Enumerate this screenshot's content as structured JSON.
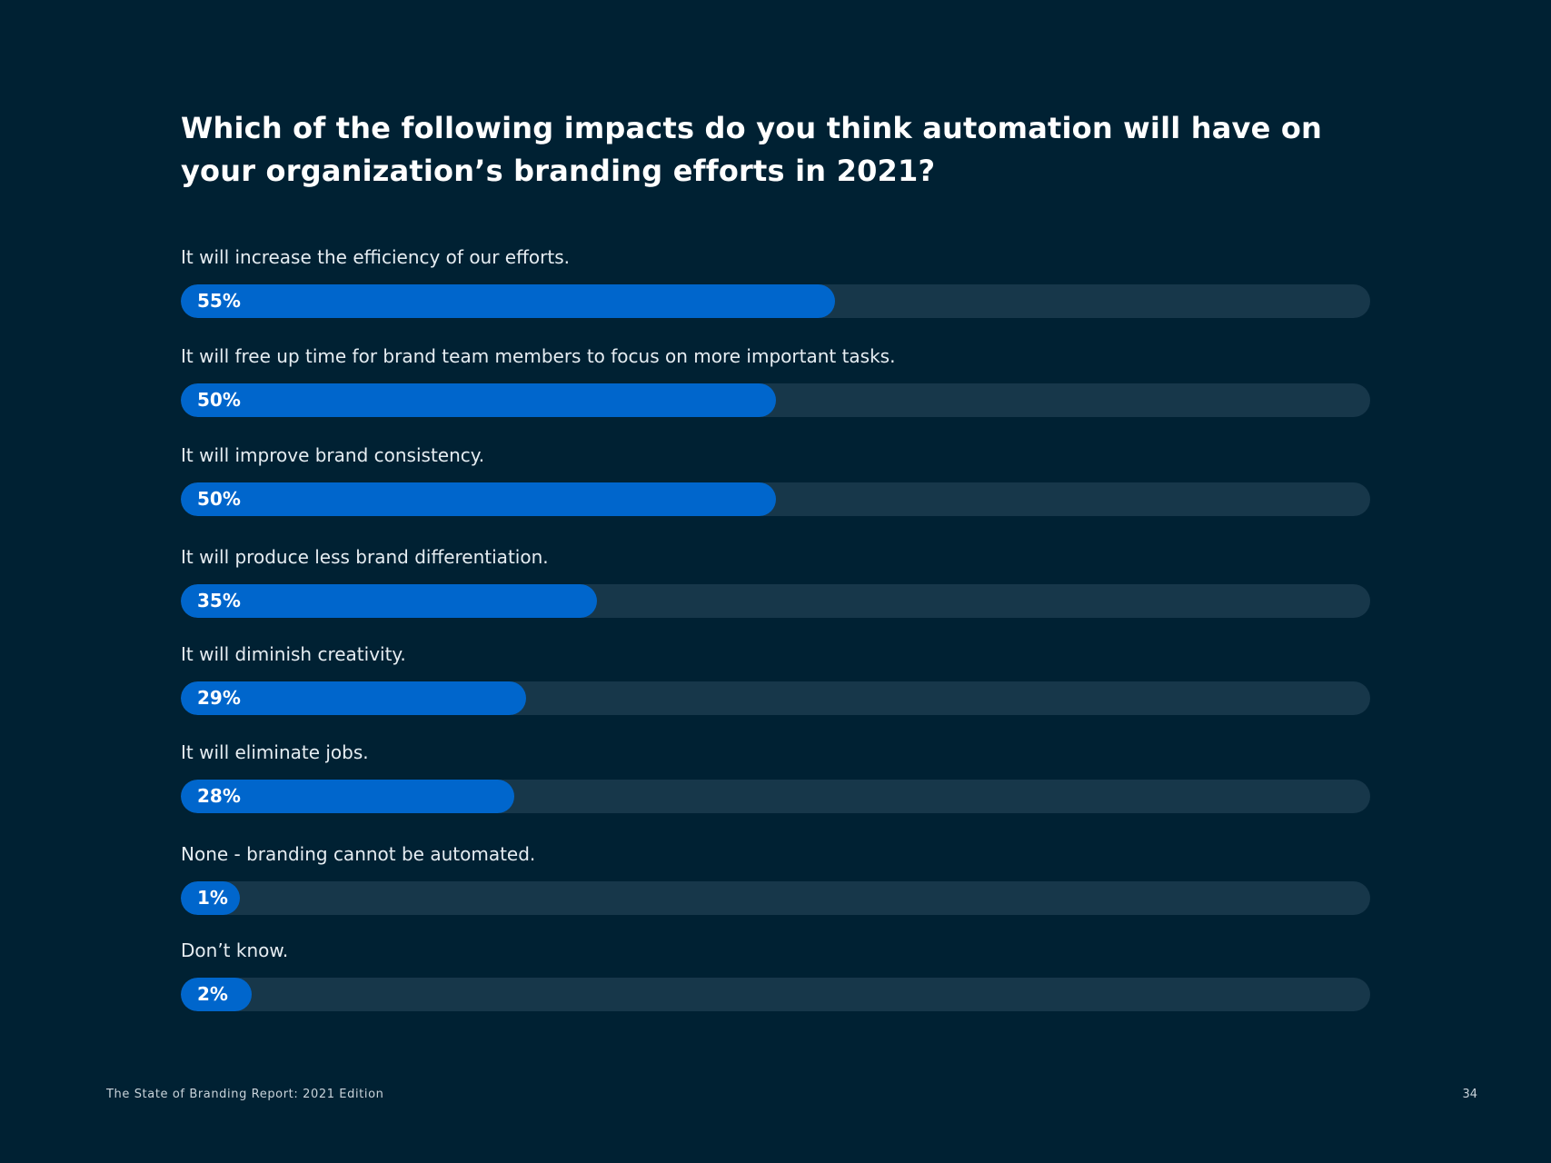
{
  "chart_data": {
    "type": "bar",
    "orientation": "horizontal",
    "title": "Which of the following impacts do you think automation will have on your organization’s branding efforts in 2021?",
    "categories": [
      "It will increase the efficiency of our efforts.",
      "It will free up time for brand team members to focus on more important tasks.",
      "It will improve brand consistency.",
      "It will produce less brand differentiation.",
      "It will diminish creativity.",
      "It will eliminate jobs.",
      "None - branding cannot be automated.",
      "Don’t know."
    ],
    "values": [
      55,
      50,
      50,
      35,
      29,
      28,
      1,
      2
    ],
    "value_labels": [
      "55%",
      "50%",
      "50%",
      "35%",
      "29%",
      "28%",
      "1%",
      "2%"
    ],
    "unit": "%",
    "xlim": [
      0,
      100
    ],
    "grid": false,
    "legend": "none",
    "colors": {
      "bar": "#0066cc",
      "track": "#17374a",
      "background": "#002133"
    }
  },
  "footer": {
    "report_title": "The State of Branding Report: 2021 Edition",
    "page_number": "34"
  }
}
